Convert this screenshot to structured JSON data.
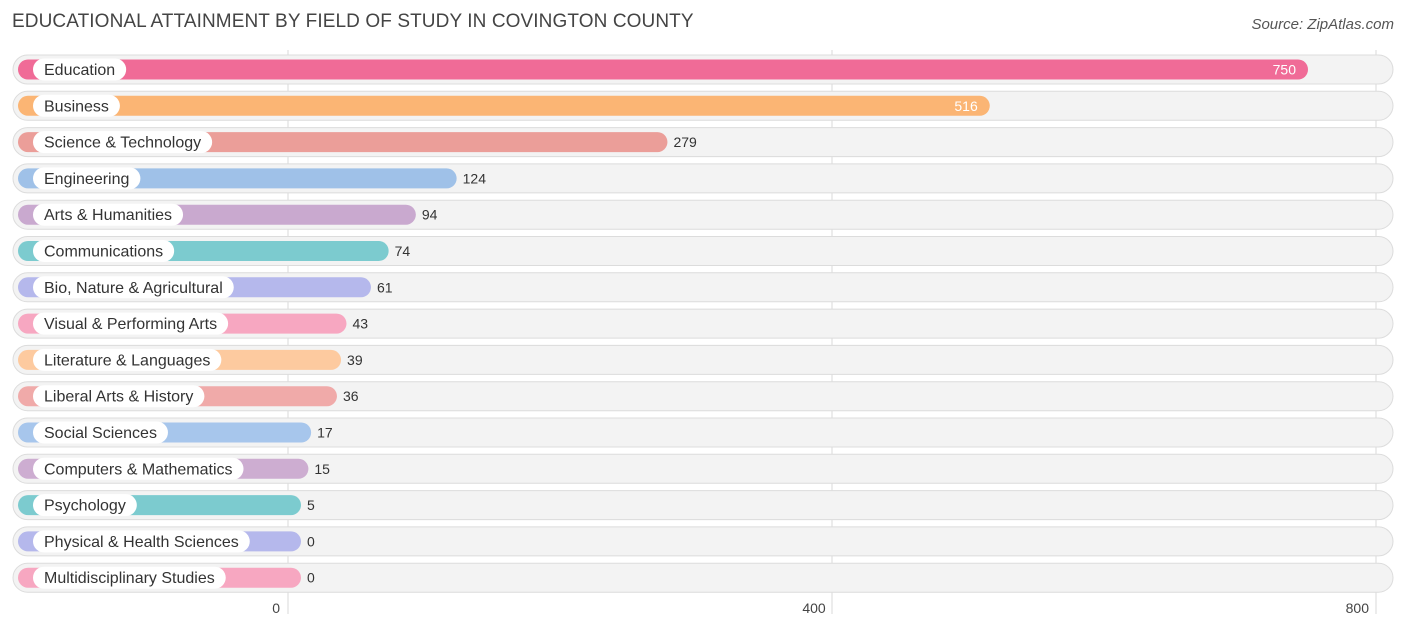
{
  "title": "EDUCATIONAL ATTAINMENT BY FIELD OF STUDY IN COVINGTON COUNTY",
  "source": "Source: ZipAtlas.com",
  "chart_data": {
    "type": "bar",
    "orientation": "horizontal",
    "title": "EDUCATIONAL ATTAINMENT BY FIELD OF STUDY IN COVINGTON COUNTY",
    "categories": [
      "Education",
      "Business",
      "Science & Technology",
      "Engineering",
      "Arts & Humanities",
      "Communications",
      "Bio, Nature & Agricultural",
      "Visual & Performing Arts",
      "Literature & Languages",
      "Liberal Arts & History",
      "Social Sciences",
      "Computers & Mathematics",
      "Psychology",
      "Physical & Health Sciences",
      "Multidisciplinary Studies"
    ],
    "values": [
      750,
      516,
      279,
      124,
      94,
      74,
      61,
      43,
      39,
      36,
      17,
      15,
      5,
      0,
      0
    ],
    "value_labels": [
      "750",
      "516",
      "279",
      "124",
      "94",
      "74",
      "61",
      "43",
      "39",
      "36",
      "17",
      "15",
      "5",
      "0",
      "0"
    ],
    "colors": [
      "#f06b97",
      "#fbb574",
      "#eb9e99",
      "#9fc1e8",
      "#c9a9cf",
      "#7ccbcf",
      "#b5b8ec",
      "#f7a7c1",
      "#fdca9f",
      "#f0aaa9",
      "#a7c6ec",
      "#cdadd1",
      "#7ccbcf",
      "#b5b8ec",
      "#f7a7c1"
    ],
    "xlim": [
      0,
      800
    ],
    "xticks": [
      0,
      400,
      800
    ],
    "xtick_labels": [
      "0",
      "400",
      "800"
    ],
    "grid": true
  }
}
